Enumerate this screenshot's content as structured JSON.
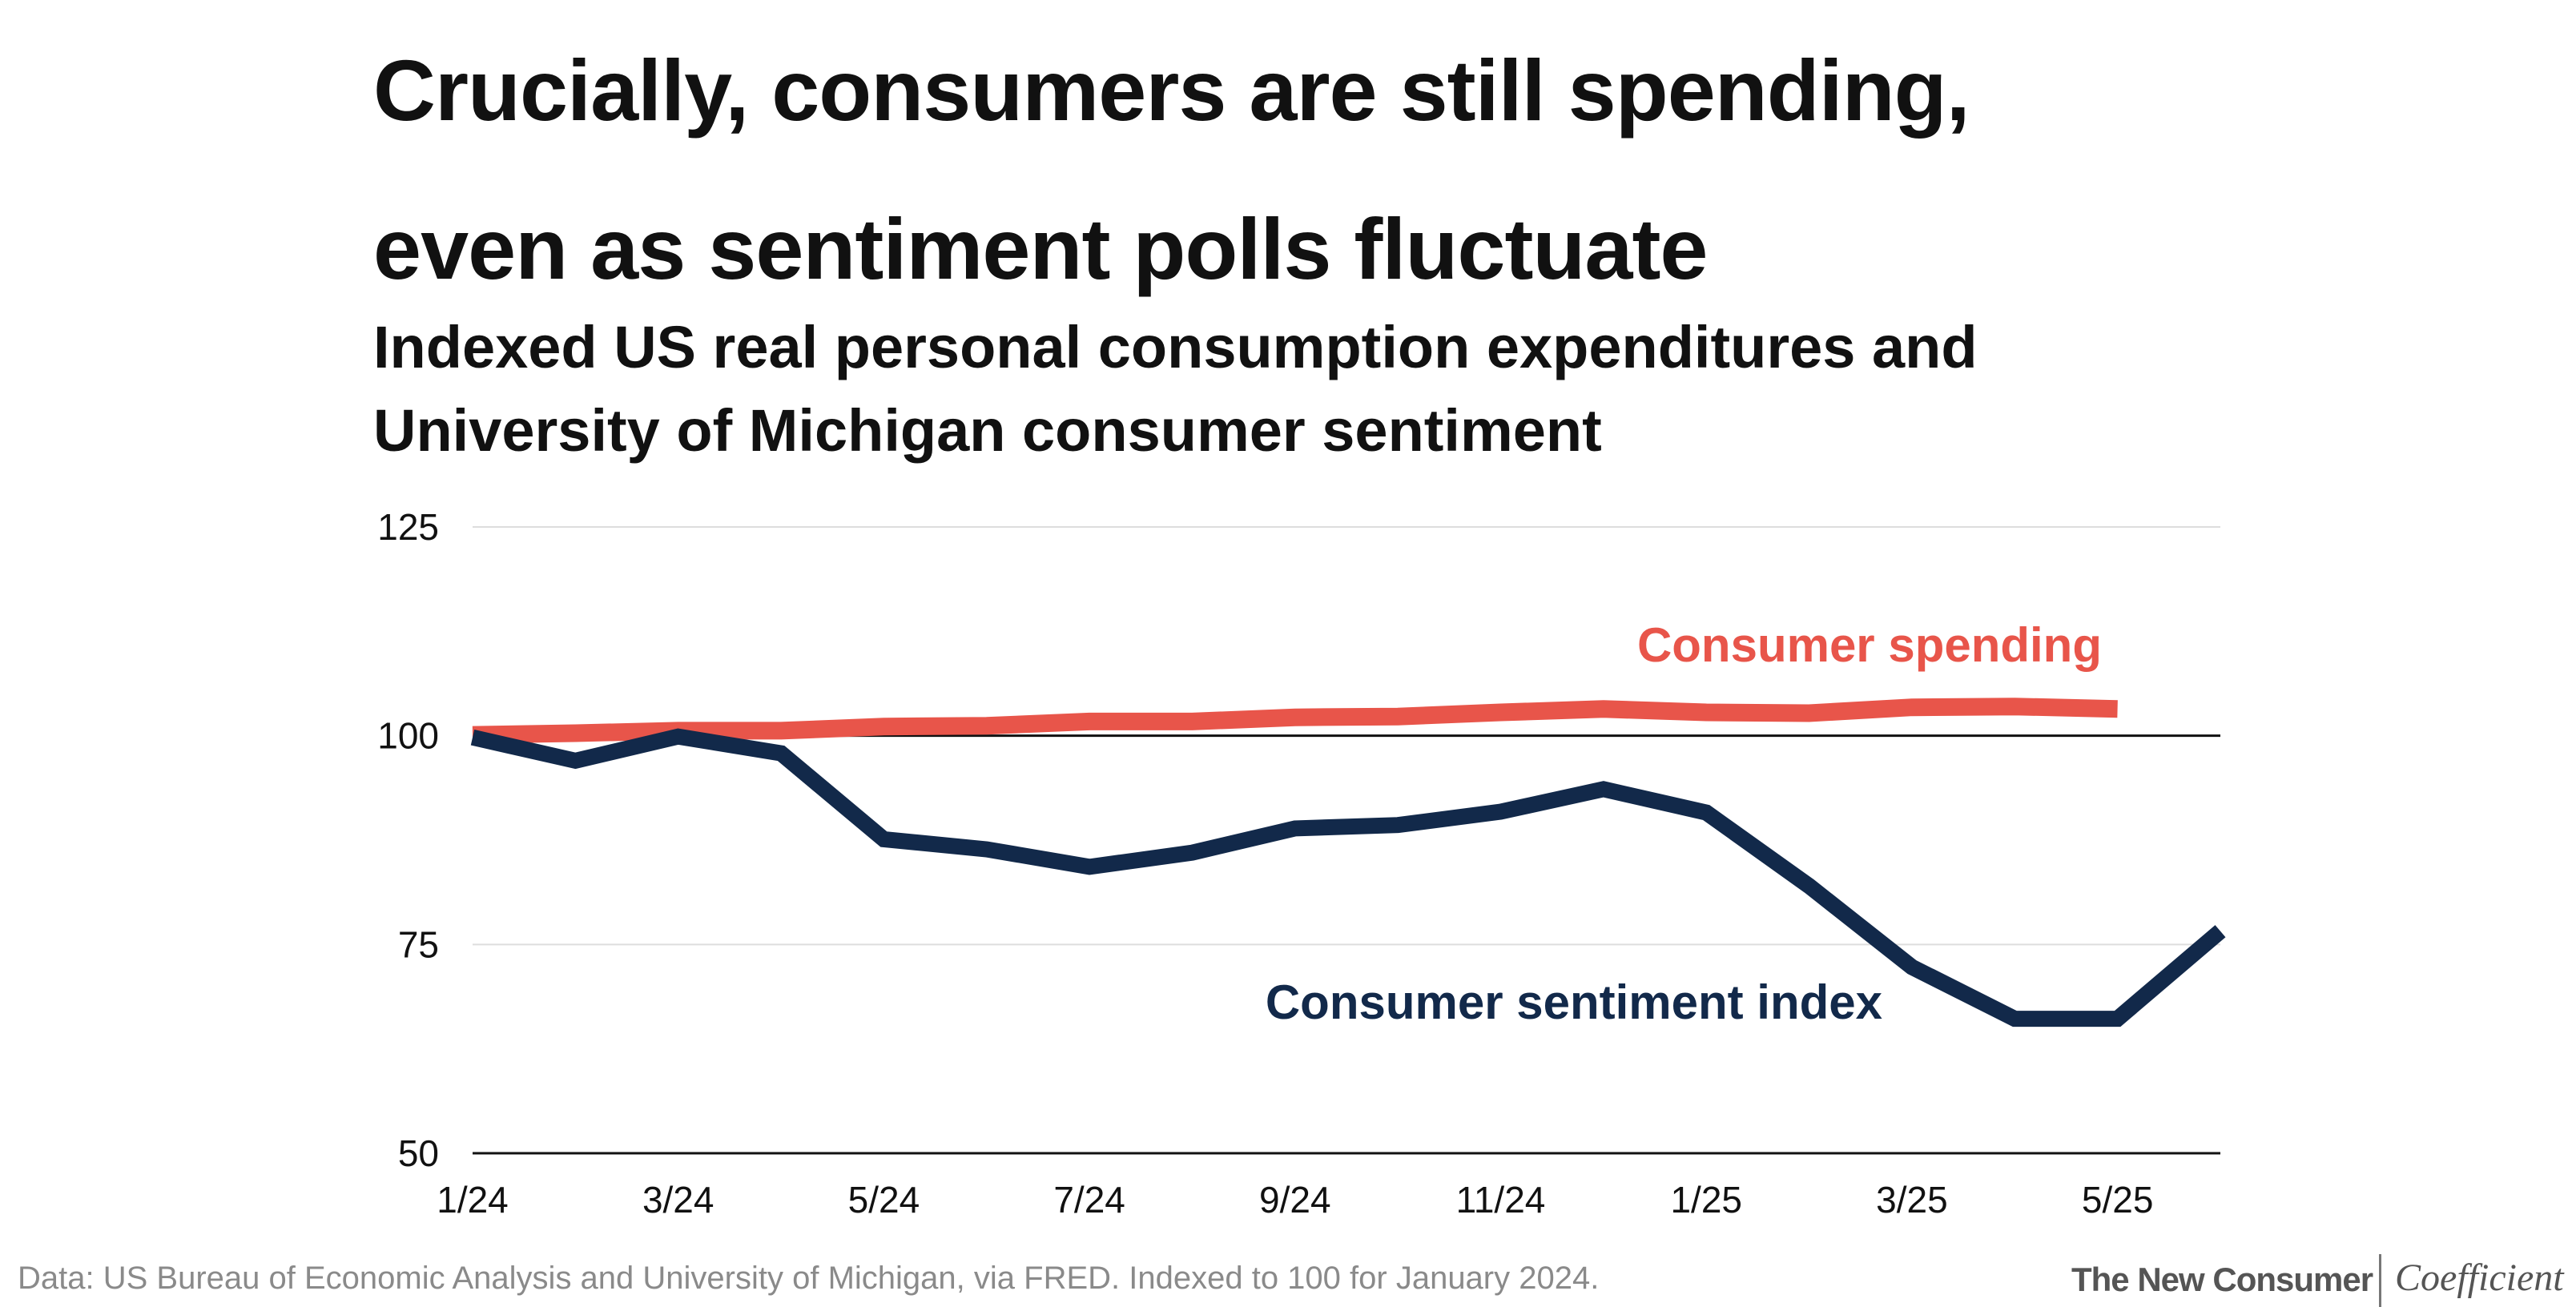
{
  "header": {
    "title_line1": "Crucially, consumers are still spending,",
    "title_line2": "even as sentiment polls fluctuate",
    "subtitle_line1": "Indexed US real personal consumption expenditures and",
    "subtitle_line2": "University of Michigan consumer sentiment"
  },
  "chart_data": {
    "type": "line",
    "x": [
      "1/24",
      "2/24",
      "3/24",
      "4/24",
      "5/24",
      "6/24",
      "7/24",
      "8/24",
      "9/24",
      "10/24",
      "11/24",
      "12/24",
      "1/25",
      "2/25",
      "3/25",
      "4/25",
      "5/25",
      "6/25"
    ],
    "xticks": [
      "1/24",
      "3/24",
      "5/24",
      "7/24",
      "9/24",
      "11/24",
      "1/25",
      "3/25",
      "5/25"
    ],
    "yticks": [
      125,
      100,
      75,
      50
    ],
    "ylim": [
      50,
      125
    ],
    "baseline": 100,
    "grid": true,
    "series": [
      {
        "name": "Consumer spending",
        "color": "#e8554a",
        "values": [
          100.1,
          100.3,
          100.6,
          100.6,
          101.1,
          101.2,
          101.7,
          101.7,
          102.2,
          102.3,
          102.8,
          103.2,
          102.8,
          102.7,
          103.4,
          103.5,
          103.2,
          null
        ]
      },
      {
        "name": "Consumer sentiment index",
        "color": "#12294a",
        "values": [
          99.8,
          97.0,
          99.9,
          97.9,
          87.6,
          86.4,
          84.3,
          86.0,
          88.9,
          89.3,
          90.9,
          93.6,
          90.8,
          82.0,
          72.3,
          66.1,
          66.1,
          76.6
        ]
      }
    ]
  },
  "footer": {
    "source": "Data: US Bureau of Economic Analysis and University of Michigan, via FRED. Indexed to 100 for January 2024.",
    "brand_primary": "The New Consumer",
    "brand_secondary": "Coefficient"
  }
}
